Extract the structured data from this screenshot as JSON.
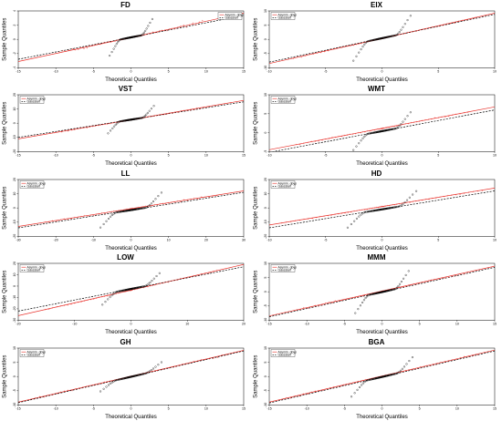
{
  "colors": {
    "asym": "#e8302a",
    "gauss": "#000000"
  },
  "chart_data": [
    {
      "type": "scatter",
      "title": "FD",
      "xlabel": "Theoretical Quantiles",
      "ylabel": "Sample Quantiles",
      "xlim": [
        -15,
        15
      ],
      "ylim": [
        -5,
        5
      ],
      "xticks": [
        "-15",
        "-10",
        "-5",
        "0",
        "5",
        "10",
        "15"
      ],
      "yticks": [
        "-4",
        "-2",
        "0",
        "2",
        "4"
      ],
      "legend": "top-right",
      "series": [
        {
          "name": "Asymm. gbyp",
          "lineStart": [
            -15,
            -3.9
          ],
          "lineEnd": [
            15,
            4.6
          ],
          "outer": 7.5,
          "inner": 2.8,
          "tail": 2.5
        },
        {
          "name": "Gaussian",
          "lineStart": [
            -15,
            -3.5
          ],
          "lineEnd": [
            15,
            4.2
          ],
          "outer": 2.8,
          "inner": 2.8,
          "tail": 2.8
        }
      ]
    },
    {
      "type": "scatter",
      "title": "EIX",
      "xlabel": "Theoretical Quantiles",
      "ylabel": "Sample Quantiles",
      "xlim": [
        -10,
        10
      ],
      "ylim": [
        -10,
        10
      ],
      "xticks": [
        "-10",
        "-5",
        "0",
        "5",
        "10"
      ],
      "yticks": [
        "-10",
        "-5",
        "0",
        "5",
        "10"
      ],
      "legend": "top-left",
      "series": [
        {
          "name": "Asymm. gbyp",
          "lineStart": [
            -10,
            -8.5
          ],
          "lineEnd": [
            10,
            9.2
          ],
          "outer": 6.5,
          "inner": 2.5,
          "tail": 4.5
        },
        {
          "name": "Gaussian",
          "lineStart": [
            -10,
            -8.0
          ],
          "lineEnd": [
            10,
            8.8
          ],
          "outer": 2.6,
          "inner": 2.5,
          "tail": 6.5
        }
      ]
    },
    {
      "type": "scatter",
      "title": "VST",
      "xlabel": "Theoretical Quantiles",
      "ylabel": "Sample Quantiles",
      "xlim": [
        -15,
        15
      ],
      "ylim": [
        -20,
        20
      ],
      "xticks": [
        "-15",
        "-10",
        "-5",
        "0",
        "5",
        "10",
        "15"
      ],
      "yticks": [
        "-20",
        "-10",
        "0",
        "10",
        "20"
      ],
      "legend": "top-left",
      "series": [
        {
          "name": "Asymm. gbyp",
          "lineStart": [
            -15,
            -11
          ],
          "lineEnd": [
            15,
            16
          ],
          "outer": 8,
          "inner": 3,
          "tail": 8
        },
        {
          "name": "Gaussian",
          "lineStart": [
            -15,
            -10
          ],
          "lineEnd": [
            15,
            15
          ],
          "outer": 4,
          "inner": 3,
          "tail": 8
        }
      ]
    },
    {
      "type": "scatter",
      "title": "WMT",
      "xlabel": "Theoretical Quantiles",
      "ylabel": "Sample Quantiles",
      "xlim": [
        -10,
        10
      ],
      "ylim": [
        -5,
        10
      ],
      "xticks": [
        "-10",
        "-5",
        "0",
        "5",
        "10"
      ],
      "yticks": [
        "-5",
        "0",
        "5",
        "10"
      ],
      "legend": "top-left",
      "series": [
        {
          "name": "Asymm. gbyp",
          "lineStart": [
            -10,
            -4.5
          ],
          "lineEnd": [
            10,
            6.8
          ],
          "outer": 6,
          "inner": 2.5,
          "tail": 3
        },
        {
          "name": "Gaussian",
          "lineStart": [
            -10,
            -5.2
          ],
          "lineEnd": [
            10,
            6.0
          ],
          "outer": 3,
          "inner": 2.5,
          "tail": 4
        }
      ]
    },
    {
      "type": "scatter",
      "title": "LL",
      "xlabel": "Theoretical Quantiles",
      "ylabel": "Sample Quantiles",
      "xlim": [
        -30,
        30
      ],
      "ylim": [
        -20,
        20
      ],
      "xticks": [
        "-30",
        "-20",
        "-10",
        "0",
        "10",
        "20",
        "30"
      ],
      "yticks": [
        "-20",
        "-10",
        "0",
        "10",
        "20"
      ],
      "legend": "top-left",
      "series": [
        {
          "name": "Asymm. gbyp",
          "lineStart": [
            -30,
            -13
          ],
          "lineEnd": [
            30,
            12
          ],
          "outer": 18,
          "inner": 8,
          "tail": 8
        },
        {
          "name": "Gaussian",
          "lineStart": [
            -30,
            -14
          ],
          "lineEnd": [
            30,
            11
          ],
          "outer": 9,
          "inner": 8,
          "tail": 10
        }
      ]
    },
    {
      "type": "scatter",
      "title": "HD",
      "xlabel": "Theoretical Quantiles",
      "ylabel": "Sample Quantiles",
      "xlim": [
        -10,
        10
      ],
      "ylim": [
        -20,
        20
      ],
      "xticks": [
        "-10",
        "-5",
        "0",
        "5",
        "10"
      ],
      "yticks": [
        "-20",
        "-10",
        "0",
        "10",
        "20"
      ],
      "legend": "top-left",
      "series": [
        {
          "name": "Asymm. gbyp",
          "lineStart": [
            -10,
            -12
          ],
          "lineEnd": [
            10,
            14
          ],
          "outer": 7,
          "inner": 3,
          "tail": 4
        },
        {
          "name": "Gaussian",
          "lineStart": [
            -10,
            -14
          ],
          "lineEnd": [
            10,
            12
          ],
          "outer": 3.5,
          "inner": 3,
          "tail": 10
        }
      ]
    },
    {
      "type": "scatter",
      "title": "LOW",
      "xlabel": "Theoretical Quantiles",
      "ylabel": "Sample Quantiles",
      "xlim": [
        -20,
        20
      ],
      "ylim": [
        -30,
        20
      ],
      "xticks": [
        "-20",
        "-10",
        "0",
        "10",
        "20"
      ],
      "yticks": [
        "-30",
        "-20",
        "-10",
        "0",
        "10",
        "20"
      ],
      "legend": "top-left",
      "series": [
        {
          "name": "Asymm. gbyp",
          "lineStart": [
            -20,
            -26
          ],
          "lineEnd": [
            20,
            19
          ],
          "outer": 12,
          "inner": 5,
          "tail": 6
        },
        {
          "name": "Gaussian",
          "lineStart": [
            -20,
            -22
          ],
          "lineEnd": [
            20,
            17
          ],
          "outer": 6,
          "inner": 5,
          "tail": 10
        }
      ]
    },
    {
      "type": "scatter",
      "title": "MMM",
      "xlabel": "Theoretical Quantiles",
      "ylabel": "Sample Quantiles",
      "xlim": [
        -15,
        15
      ],
      "ylim": [
        -10,
        10
      ],
      "xticks": [
        "-15",
        "-10",
        "-5",
        "0",
        "5",
        "10",
        "15"
      ],
      "yticks": [
        "-10",
        "-5",
        "0",
        "5",
        "10"
      ],
      "legend": "top-left",
      "series": [
        {
          "name": "Asymm. gbyp",
          "lineStart": [
            -15,
            -8.5
          ],
          "lineEnd": [
            15,
            9.0
          ],
          "outer": 9,
          "inner": 3.5,
          "tail": 5
        },
        {
          "name": "Gaussian",
          "lineStart": [
            -15,
            -8.8
          ],
          "lineEnd": [
            15,
            8.6
          ],
          "outer": 4,
          "inner": 3.5,
          "tail": 6
        }
      ]
    },
    {
      "type": "scatter",
      "title": "GH",
      "xlabel": "Theoretical Quantiles",
      "ylabel": "Sample Quantiles",
      "xlim": [
        -15,
        15
      ],
      "ylim": [
        -10,
        10
      ],
      "xticks": [
        "-15",
        "-10",
        "-5",
        "0",
        "5",
        "10",
        "15"
      ],
      "yticks": [
        "-10",
        "-5",
        "0",
        "5",
        "10"
      ],
      "legend": "top-left",
      "series": [
        {
          "name": "Asymm. gbyp",
          "lineStart": [
            -15,
            -9
          ],
          "lineEnd": [
            15,
            9.2
          ],
          "outer": 10,
          "inner": 4,
          "tail": 3
        },
        {
          "name": "Gaussian",
          "lineStart": [
            -15,
            -9.2
          ],
          "lineEnd": [
            15,
            9.0
          ],
          "outer": 5,
          "inner": 4,
          "tail": 3
        }
      ]
    },
    {
      "type": "scatter",
      "title": "BGA",
      "xlabel": "Theoretical Quantiles",
      "ylabel": "Sample Quantiles",
      "xlim": [
        -15,
        15
      ],
      "ylim": [
        -10,
        10
      ],
      "xticks": [
        "-15",
        "-10",
        "-5",
        "0",
        "5",
        "10",
        "15"
      ],
      "yticks": [
        "-10",
        "-5",
        "0",
        "5",
        "10"
      ],
      "legend": "top-left",
      "series": [
        {
          "name": "Asymm. gbyp",
          "lineStart": [
            -15,
            -9
          ],
          "lineEnd": [
            15,
            9.3
          ],
          "outer": 10,
          "inner": 4,
          "tail": 3
        },
        {
          "name": "Gaussian",
          "lineStart": [
            -15,
            -9.3
          ],
          "lineEnd": [
            15,
            9.0
          ],
          "outer": 5,
          "inner": 4,
          "tail": 5
        }
      ]
    }
  ]
}
